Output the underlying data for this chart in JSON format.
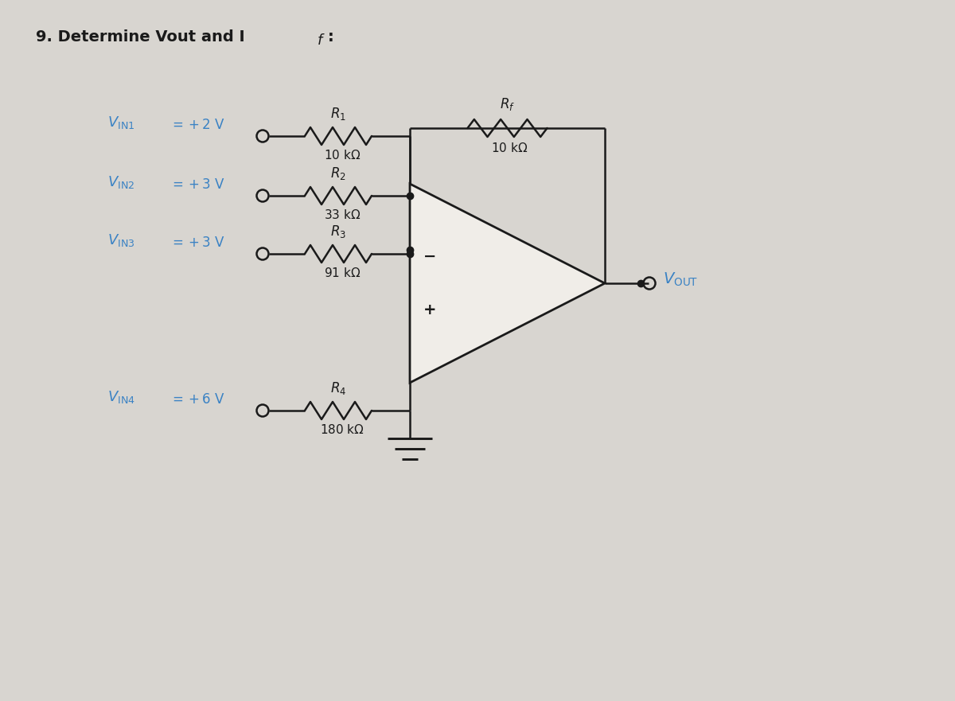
{
  "bg_color": "#d8d5d0",
  "line_color": "#1a1a1a",
  "label_color": "#3a82c4",
  "text_color": "#1a1a1a",
  "opamp_fill": "#f0ede8",
  "title_text": "9. Determine Vout and I",
  "title_sub": "f",
  "vin1_val": "+2",
  "vin2_val": "+3",
  "vin3_val": "+3",
  "vin4_val": "+6",
  "r1_val": "10",
  "r2_val": "33",
  "r3_val": "91",
  "r4_val": "180",
  "rf_val": "10",
  "figw": 12.0,
  "figh": 8.81
}
